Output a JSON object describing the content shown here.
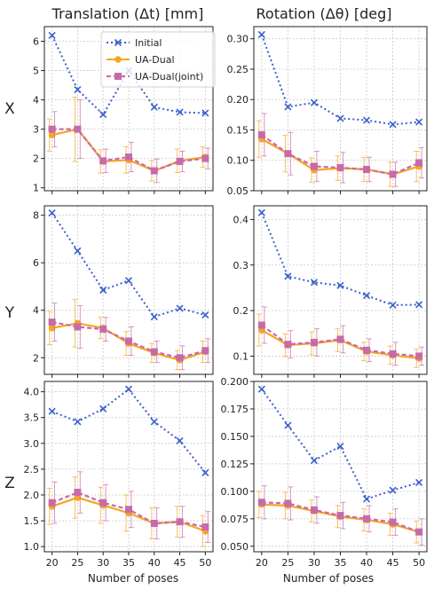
{
  "col_titles": [
    "Translation (Δt) [mm]",
    "Rotation (Δθ) [deg]"
  ],
  "row_labels": [
    "X",
    "Y",
    "Z"
  ],
  "xlabel": "Number of poses",
  "legend": [
    "Initial",
    "UA-Dual",
    "UA-Dual(joint)"
  ],
  "colors": {
    "initial": "#3a5fcd",
    "uadual": "#f5a623",
    "joint": "#c86aa8"
  },
  "chart_data": [
    {
      "type": "line",
      "row": "X",
      "column": "Translation (Δt) [mm]",
      "x": [
        20,
        25,
        30,
        35,
        40,
        45,
        50
      ],
      "ylim": [
        0.9,
        6.5
      ],
      "yticks": [
        1,
        2,
        3,
        4,
        5,
        6
      ],
      "ytick_labels": [
        "1",
        "2",
        "3",
        "4",
        "5",
        "6"
      ],
      "grid": true,
      "legend_position": "top-center",
      "series": [
        {
          "name": "Initial",
          "values": [
            6.2,
            4.35,
            3.5,
            5.0,
            3.75,
            3.58,
            3.55
          ]
        },
        {
          "name": "UA-Dual",
          "values": [
            2.8,
            3.0,
            1.9,
            1.95,
            1.58,
            1.92,
            2.05
          ],
          "err": [
            0.55,
            1.1,
            0.4,
            0.45,
            0.35,
            0.4,
            0.35
          ]
        },
        {
          "name": "UA-Dual(joint)",
          "values": [
            3.0,
            3.0,
            1.92,
            2.05,
            1.58,
            1.9,
            2.0
          ],
          "err": [
            0.6,
            1.0,
            0.4,
            0.5,
            0.4,
            0.35,
            0.35
          ]
        }
      ]
    },
    {
      "type": "line",
      "row": "X",
      "column": "Rotation (Δθ) [deg]",
      "x": [
        20,
        25,
        30,
        35,
        40,
        45,
        50
      ],
      "ylim": [
        0.05,
        0.32
      ],
      "yticks": [
        0.05,
        0.1,
        0.15,
        0.2,
        0.25,
        0.3
      ],
      "ytick_labels": [
        "0.05",
        "0.10",
        "0.15",
        "0.20",
        "0.25",
        "0.30"
      ],
      "grid": true,
      "series": [
        {
          "name": "Initial",
          "values": [
            0.307,
            0.188,
            0.195,
            0.169,
            0.166,
            0.159,
            0.163
          ]
        },
        {
          "name": "UA-Dual",
          "values": [
            0.135,
            0.111,
            0.084,
            0.087,
            0.085,
            0.077,
            0.09
          ],
          "err": [
            0.03,
            0.03,
            0.02,
            0.02,
            0.02,
            0.02,
            0.025
          ]
        },
        {
          "name": "UA-Dual(joint)",
          "values": [
            0.142,
            0.111,
            0.09,
            0.088,
            0.085,
            0.077,
            0.096
          ],
          "err": [
            0.035,
            0.035,
            0.025,
            0.025,
            0.02,
            0.02,
            0.025
          ]
        }
      ]
    },
    {
      "type": "line",
      "row": "Y",
      "column": "Translation (Δt) [mm]",
      "x": [
        20,
        25,
        30,
        35,
        40,
        45,
        50
      ],
      "ylim": [
        1.3,
        8.4
      ],
      "yticks": [
        2,
        4,
        6,
        8
      ],
      "ytick_labels": [
        "2",
        "4",
        "6",
        "8"
      ],
      "grid": true,
      "series": [
        {
          "name": "Initial",
          "values": [
            8.1,
            6.5,
            4.85,
            5.25,
            3.72,
            4.08,
            3.8
          ]
        },
        {
          "name": "UA-Dual",
          "values": [
            3.25,
            3.45,
            3.25,
            2.6,
            2.2,
            1.9,
            2.25
          ],
          "err": [
            0.7,
            1.0,
            0.45,
            0.5,
            0.4,
            0.4,
            0.45
          ]
        },
        {
          "name": "UA-Dual(joint)",
          "values": [
            3.5,
            3.3,
            3.2,
            2.7,
            2.25,
            2.0,
            2.3
          ],
          "err": [
            0.8,
            0.9,
            0.5,
            0.6,
            0.45,
            0.5,
            0.5
          ]
        }
      ]
    },
    {
      "type": "line",
      "row": "Y",
      "column": "Rotation (Δθ) [deg]",
      "x": [
        20,
        25,
        30,
        35,
        40,
        45,
        50
      ],
      "ylim": [
        0.06,
        0.43
      ],
      "yticks": [
        0.1,
        0.2,
        0.3,
        0.4
      ],
      "ytick_labels": [
        "0.1",
        "0.2",
        "0.3",
        "0.4"
      ],
      "grid": true,
      "series": [
        {
          "name": "Initial",
          "values": [
            0.415,
            0.275,
            0.262,
            0.255,
            0.233,
            0.212,
            0.213
          ]
        },
        {
          "name": "UA-Dual",
          "values": [
            0.157,
            0.124,
            0.128,
            0.135,
            0.11,
            0.102,
            0.095
          ],
          "err": [
            0.035,
            0.025,
            0.025,
            0.025,
            0.02,
            0.02,
            0.02
          ]
        },
        {
          "name": "UA-Dual(joint)",
          "values": [
            0.168,
            0.126,
            0.13,
            0.137,
            0.113,
            0.105,
            0.1
          ],
          "err": [
            0.04,
            0.03,
            0.03,
            0.03,
            0.025,
            0.025,
            0.02
          ]
        }
      ]
    },
    {
      "type": "line",
      "row": "Z",
      "column": "Translation (Δt) [mm]",
      "x": [
        20,
        25,
        30,
        35,
        40,
        45,
        50
      ],
      "ylim": [
        0.9,
        4.2
      ],
      "yticks": [
        1.0,
        1.5,
        2.0,
        2.5,
        3.0,
        3.5,
        4.0
      ],
      "ytick_labels": [
        "1.0",
        "1.5",
        "2.0",
        "2.5",
        "3.0",
        "3.5",
        "4.0"
      ],
      "grid": true,
      "series": [
        {
          "name": "Initial",
          "values": [
            3.62,
            3.42,
            3.67,
            4.05,
            3.42,
            3.05,
            2.43
          ]
        },
        {
          "name": "UA-Dual",
          "values": [
            1.78,
            1.95,
            1.8,
            1.65,
            1.45,
            1.48,
            1.3
          ],
          "err": [
            0.35,
            0.4,
            0.35,
            0.35,
            0.3,
            0.3,
            0.3
          ]
        },
        {
          "name": "UA-Dual(joint)",
          "values": [
            1.85,
            2.05,
            1.85,
            1.72,
            1.45,
            1.48,
            1.38
          ],
          "err": [
            0.4,
            0.4,
            0.35,
            0.35,
            0.3,
            0.3,
            0.3
          ]
        }
      ]
    },
    {
      "type": "line",
      "row": "Z",
      "column": "Rotation (Δθ) [deg]",
      "x": [
        20,
        25,
        30,
        35,
        40,
        45,
        50
      ],
      "ylim": [
        0.045,
        0.2
      ],
      "yticks": [
        0.05,
        0.075,
        0.1,
        0.125,
        0.15,
        0.175,
        0.2
      ],
      "ytick_labels": [
        "0.050",
        "0.075",
        "0.100",
        "0.125",
        "0.150",
        "0.175",
        "0.200"
      ],
      "grid": true,
      "series": [
        {
          "name": "Initial",
          "values": [
            0.193,
            0.16,
            0.128,
            0.141,
            0.093,
            0.101,
            0.108
          ]
        },
        {
          "name": "UA-Dual",
          "values": [
            0.088,
            0.087,
            0.082,
            0.077,
            0.074,
            0.07,
            0.063
          ],
          "err": [
            0.012,
            0.012,
            0.01,
            0.01,
            0.01,
            0.01,
            0.01
          ]
        },
        {
          "name": "UA-Dual(joint)",
          "values": [
            0.09,
            0.089,
            0.083,
            0.078,
            0.075,
            0.072,
            0.063
          ],
          "err": [
            0.015,
            0.015,
            0.012,
            0.012,
            0.012,
            0.012,
            0.012
          ]
        }
      ]
    }
  ]
}
